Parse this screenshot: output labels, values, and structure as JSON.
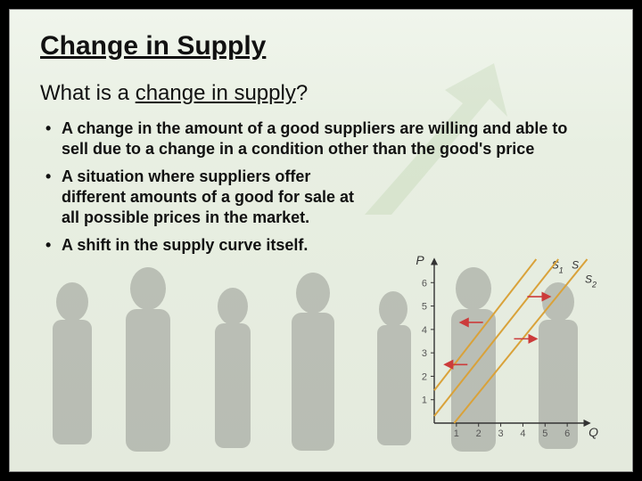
{
  "title": "Change in Supply",
  "subtitle_prefix": "What is a ",
  "subtitle_underlined": "change in supply",
  "subtitle_suffix": "?",
  "bullets": [
    "A change in the amount of a good suppliers are willing and able to sell due to a change in a condition other than the good's price",
    "A situation where suppliers offer different amounts of a good for sale at all possible prices in the market.",
    "A shift in the supply curve itself."
  ],
  "chart": {
    "type": "line",
    "x_axis_label": "Q",
    "y_axis_label": "P",
    "x_ticks": [
      1,
      2,
      3,
      4,
      5,
      6
    ],
    "y_ticks": [
      1,
      2,
      3,
      4,
      5,
      6
    ],
    "xlim": [
      0,
      7
    ],
    "ylim": [
      0,
      7
    ],
    "axis_color": "#333333",
    "tick_fontsize": 11,
    "label_fontsize": 14,
    "series": [
      {
        "name": "S1",
        "points": [
          [
            0,
            1.4
          ],
          [
            4.6,
            7
          ]
        ],
        "color": "#d9a23a",
        "width": 2,
        "label_pos": [
          5.3,
          6.6
        ]
      },
      {
        "name": "S",
        "points": [
          [
            0,
            0.3
          ],
          [
            5.6,
            7
          ]
        ],
        "color": "#d9a23a",
        "width": 2,
        "label_pos": [
          6.2,
          6.6
        ]
      },
      {
        "name": "S2",
        "points": [
          [
            0.9,
            0
          ],
          [
            6.9,
            7
          ]
        ],
        "color": "#d9a23a",
        "width": 2,
        "label_pos": [
          6.8,
          6.0
        ]
      }
    ],
    "arrows": [
      {
        "from": [
          4.2,
          5.4
        ],
        "to": [
          5.2,
          5.4
        ],
        "color": "#cc3b3b"
      },
      {
        "from": [
          2.2,
          4.3
        ],
        "to": [
          1.2,
          4.3
        ],
        "color": "#cc3b3b"
      },
      {
        "from": [
          3.6,
          3.6
        ],
        "to": [
          4.6,
          3.6
        ],
        "color": "#cc3b3b"
      },
      {
        "from": [
          1.5,
          2.5
        ],
        "to": [
          0.5,
          2.5
        ],
        "color": "#cc3b3b"
      }
    ],
    "background_color": "transparent"
  },
  "background": {
    "silhouette_color": "#4a4a4a",
    "arrow_color": "#6fa04f"
  }
}
